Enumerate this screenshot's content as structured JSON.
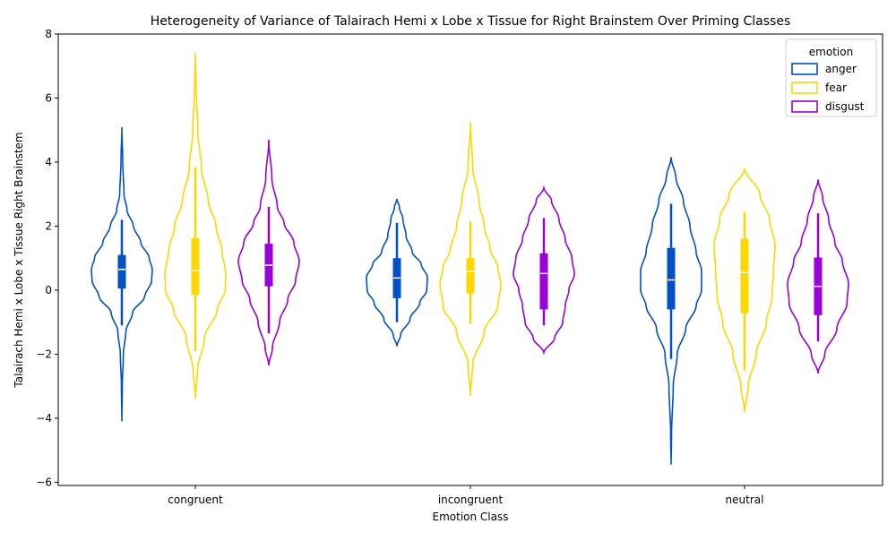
{
  "chart_data": {
    "type": "violin",
    "title": "Heterogeneity of Variance of Talairach Hemi x Lobe x Tissue for Right Brainstem Over Priming Classes",
    "xlabel": "Emotion Class",
    "ylabel": "Talairach Hemi x Lobe x Tissue Right Brainstem",
    "categories": [
      "congruent",
      "incongruent",
      "neutral"
    ],
    "ylim": [
      -6.1,
      8.0
    ],
    "yticks": [
      -6,
      -4,
      -2,
      0,
      2,
      4,
      6,
      8
    ],
    "grid": false,
    "legend": {
      "title": "emotion",
      "position": "upper-right"
    },
    "series": [
      {
        "name": "anger",
        "color": "#0050c8",
        "violins": [
          {
            "min": -4.1,
            "max": 5.1,
            "q1": 0.05,
            "median": 0.65,
            "q3": 1.1,
            "whisker_low": -1.1,
            "whisker_high": 2.2,
            "density": [
              [
                -4.1,
                0.0
              ],
              [
                -3.0,
                0.015
              ],
              [
                -2.0,
                0.05
              ],
              [
                -1.3,
                0.13
              ],
              [
                -0.7,
                0.35
              ],
              [
                -0.2,
                0.75
              ],
              [
                0.3,
                0.98
              ],
              [
                0.65,
                1.0
              ],
              [
                1.0,
                0.9
              ],
              [
                1.5,
                0.62
              ],
              [
                2.0,
                0.38
              ],
              [
                2.5,
                0.17
              ],
              [
                3.0,
                0.07
              ],
              [
                4.0,
                0.03
              ],
              [
                5.1,
                0.0
              ]
            ]
          },
          {
            "min": -1.75,
            "max": 2.85,
            "q1": -0.25,
            "median": 0.38,
            "q3": 1.0,
            "whisker_low": -1.0,
            "whisker_high": 2.1,
            "density": [
              [
                -1.75,
                0.0
              ],
              [
                -1.4,
                0.12
              ],
              [
                -0.9,
                0.43
              ],
              [
                -0.4,
                0.75
              ],
              [
                0.0,
                0.98
              ],
              [
                0.4,
                1.0
              ],
              [
                0.8,
                0.8
              ],
              [
                1.2,
                0.5
              ],
              [
                1.7,
                0.3
              ],
              [
                2.2,
                0.2
              ],
              [
                2.6,
                0.08
              ],
              [
                2.85,
                0.0
              ]
            ]
          },
          {
            "min": -5.45,
            "max": 4.15,
            "q1": -0.6,
            "median": 0.32,
            "q3": 1.32,
            "whisker_low": -2.15,
            "whisker_high": 2.7,
            "density": [
              [
                -5.45,
                0.0
              ],
              [
                -4.5,
                0.015
              ],
              [
                -3.0,
                0.07
              ],
              [
                -2.0,
                0.2
              ],
              [
                -1.2,
                0.48
              ],
              [
                -0.5,
                0.82
              ],
              [
                0.0,
                1.0
              ],
              [
                0.6,
                1.0
              ],
              [
                1.2,
                0.82
              ],
              [
                2.0,
                0.62
              ],
              [
                2.8,
                0.4
              ],
              [
                3.5,
                0.16
              ],
              [
                4.15,
                0.0
              ]
            ]
          }
        ]
      },
      {
        "name": "fear",
        "color": "#ffd700",
        "violins": [
          {
            "min": -3.4,
            "max": 7.4,
            "q1": -0.15,
            "median": 0.62,
            "q3": 1.62,
            "whisker_low": -1.9,
            "whisker_high": 3.85,
            "density": [
              [
                -3.4,
                0.0
              ],
              [
                -2.5,
                0.07
              ],
              [
                -1.5,
                0.3
              ],
              [
                -0.6,
                0.72
              ],
              [
                0.0,
                0.98
              ],
              [
                0.5,
                1.0
              ],
              [
                1.2,
                0.88
              ],
              [
                2.0,
                0.68
              ],
              [
                2.8,
                0.42
              ],
              [
                3.8,
                0.2
              ],
              [
                5.0,
                0.08
              ],
              [
                6.5,
                0.02
              ],
              [
                7.4,
                0.0
              ]
            ]
          },
          {
            "min": -3.3,
            "max": 5.25,
            "q1": -0.1,
            "median": 0.58,
            "q3": 1.0,
            "whisker_low": -1.05,
            "whisker_high": 2.15,
            "density": [
              [
                -3.3,
                0.0
              ],
              [
                -2.3,
                0.08
              ],
              [
                -1.3,
                0.45
              ],
              [
                -0.5,
                0.9
              ],
              [
                0.2,
                1.0
              ],
              [
                0.7,
                0.9
              ],
              [
                1.3,
                0.65
              ],
              [
                2.0,
                0.45
              ],
              [
                2.8,
                0.28
              ],
              [
                3.8,
                0.08
              ],
              [
                5.25,
                0.0
              ]
            ]
          },
          {
            "min": -3.8,
            "max": 3.8,
            "q1": -0.72,
            "median": 0.55,
            "q3": 1.6,
            "whisker_low": -2.5,
            "whisker_high": 2.45,
            "density": [
              [
                -3.8,
                0.0
              ],
              [
                -3.0,
                0.12
              ],
              [
                -2.0,
                0.38
              ],
              [
                -1.0,
                0.72
              ],
              [
                -0.2,
                0.9
              ],
              [
                0.6,
                0.95
              ],
              [
                1.4,
                1.0
              ],
              [
                2.2,
                0.82
              ],
              [
                3.0,
                0.5
              ],
              [
                3.8,
                0.0
              ]
            ]
          }
        ]
      },
      {
        "name": "disgust",
        "color": "#9b00d9",
        "violins": [
          {
            "min": -2.35,
            "max": 4.7,
            "q1": 0.12,
            "median": 0.78,
            "q3": 1.45,
            "whisker_low": -1.35,
            "whisker_high": 2.6,
            "density": [
              [
                -2.35,
                0.0
              ],
              [
                -1.8,
                0.12
              ],
              [
                -1.0,
                0.35
              ],
              [
                -0.3,
                0.62
              ],
              [
                0.3,
                0.88
              ],
              [
                0.9,
                1.0
              ],
              [
                1.5,
                0.82
              ],
              [
                2.1,
                0.5
              ],
              [
                2.6,
                0.28
              ],
              [
                3.5,
                0.1
              ],
              [
                4.7,
                0.0
              ]
            ]
          },
          {
            "min": -1.95,
            "max": 3.2,
            "q1": -0.6,
            "median": 0.52,
            "q3": 1.15,
            "whisker_low": -1.1,
            "whisker_high": 2.25,
            "density": [
              [
                -1.95,
                0.0
              ],
              [
                -1.5,
                0.35
              ],
              [
                -1.0,
                0.62
              ],
              [
                -0.5,
                0.7
              ],
              [
                0.0,
                0.82
              ],
              [
                0.5,
                1.0
              ],
              [
                1.0,
                0.92
              ],
              [
                1.6,
                0.7
              ],
              [
                2.2,
                0.5
              ],
              [
                2.8,
                0.25
              ],
              [
                3.2,
                0.0
              ]
            ]
          },
          {
            "min": -2.6,
            "max": 3.45,
            "q1": -0.78,
            "median": 0.12,
            "q3": 1.02,
            "whisker_low": -1.6,
            "whisker_high": 2.4,
            "density": [
              [
                -2.6,
                0.0
              ],
              [
                -2.0,
                0.22
              ],
              [
                -1.2,
                0.62
              ],
              [
                -0.4,
                0.95
              ],
              [
                0.2,
                1.0
              ],
              [
                0.9,
                0.8
              ],
              [
                1.5,
                0.55
              ],
              [
                2.2,
                0.35
              ],
              [
                2.9,
                0.15
              ],
              [
                3.45,
                0.0
              ]
            ]
          }
        ]
      }
    ]
  }
}
